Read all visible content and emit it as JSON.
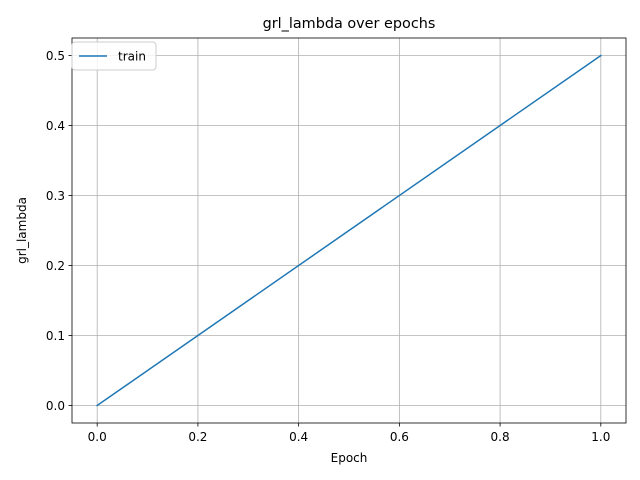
{
  "chart_data": {
    "type": "line",
    "title": "grl_lambda over epochs",
    "xlabel": "Epoch",
    "ylabel": "grl_lambda",
    "xlim": [
      -0.05,
      1.05
    ],
    "ylim": [
      -0.025,
      0.525
    ],
    "xticks": [
      0.0,
      0.2,
      0.4,
      0.6,
      0.8,
      1.0
    ],
    "xtick_labels": [
      "0.0",
      "0.2",
      "0.4",
      "0.6",
      "0.8",
      "1.0"
    ],
    "yticks": [
      0.0,
      0.1,
      0.2,
      0.3,
      0.4,
      0.5
    ],
    "ytick_labels": [
      "0.0",
      "0.1",
      "0.2",
      "0.3",
      "0.4",
      "0.5"
    ],
    "grid": true,
    "legend_position": "upper-left",
    "series": [
      {
        "name": "train",
        "color": "#1f77b4",
        "x": [
          0.0,
          1.0
        ],
        "y": [
          0.0,
          0.5
        ]
      }
    ]
  }
}
